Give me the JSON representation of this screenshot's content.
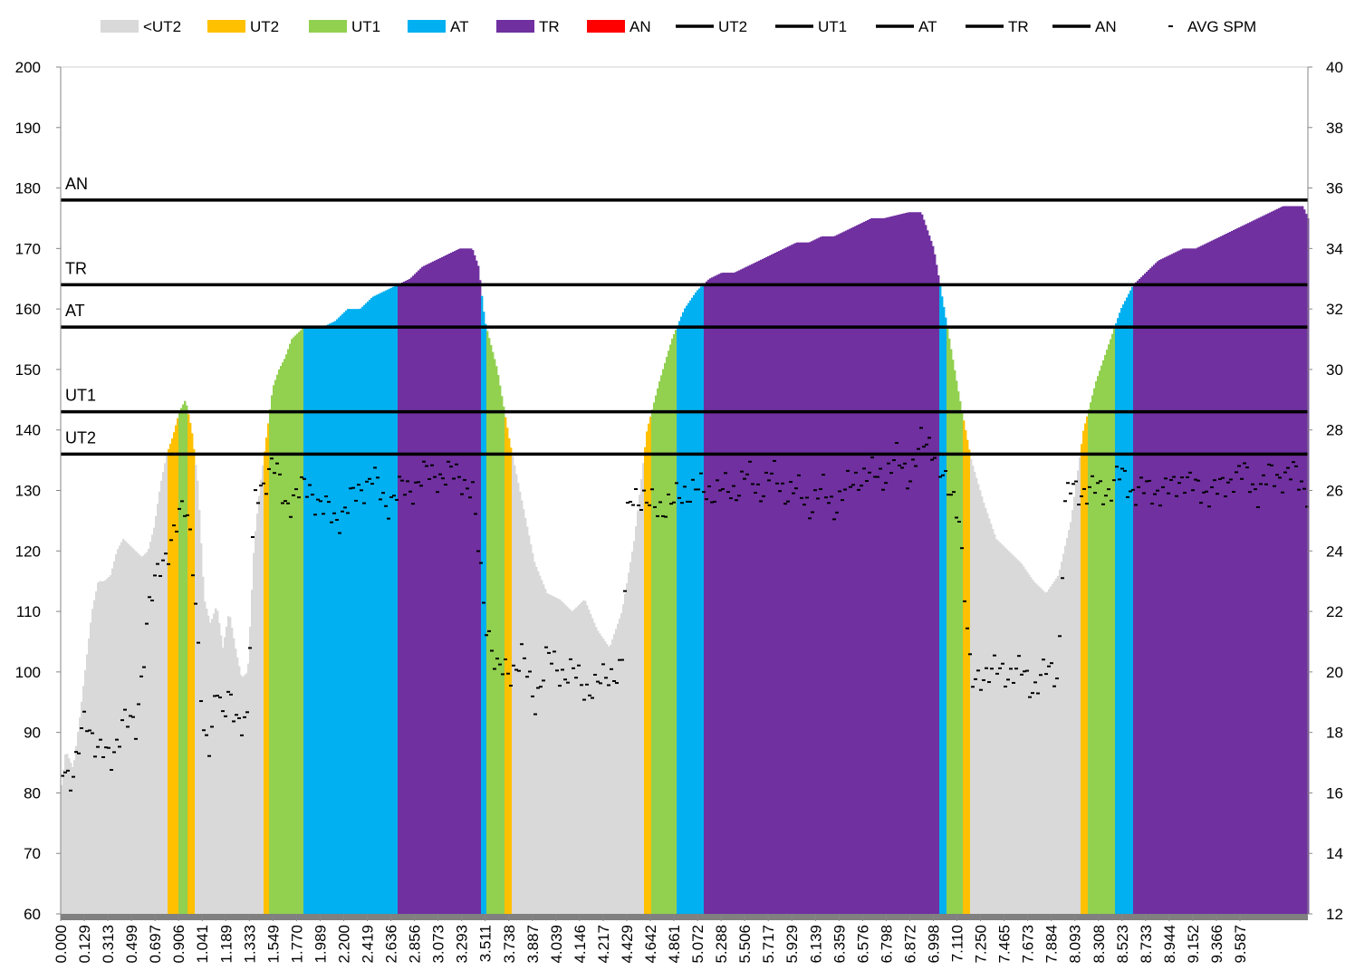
{
  "chart_data": {
    "type": "area",
    "title": "",
    "xlabel": "",
    "ylabel": "",
    "y2label": "",
    "ylim": [
      60,
      200
    ],
    "y2lim": [
      12,
      40
    ],
    "yticks": [
      60,
      70,
      80,
      90,
      100,
      110,
      120,
      130,
      140,
      150,
      160,
      170,
      180,
      190,
      200
    ],
    "y2ticks": [
      12,
      14,
      16,
      18,
      20,
      22,
      24,
      26,
      28,
      30,
      32,
      34,
      36,
      38,
      40
    ],
    "x_tick_labels": [
      "0.000",
      "0.129",
      "0.313",
      "0.499",
      "0.697",
      "0.906",
      "1.041",
      "1.189",
      "1.333",
      "1.549",
      "1.770",
      "1.989",
      "2.200",
      "2.419",
      "2.636",
      "2.856",
      "3.073",
      "3.293",
      "3.511",
      "3.738",
      "3.887",
      "4.039",
      "4.146",
      "4.217",
      "4.429",
      "4.642",
      "4.861",
      "5.072",
      "5.288",
      "5.506",
      "5.717",
      "5.929",
      "6.139",
      "6.359",
      "6.576",
      "6.798",
      "6.872",
      "6.998",
      "7.110",
      "7.250",
      "7.465",
      "7.673",
      "7.884",
      "8.093",
      "8.308",
      "8.523",
      "8.733",
      "8.944",
      "9.152",
      "9.366",
      "9.587"
    ],
    "legend": [
      {
        "label": "<UT2",
        "kind": "area",
        "color": "#d9d9d9"
      },
      {
        "label": "UT2",
        "kind": "area",
        "color": "#ffc000"
      },
      {
        "label": "UT1",
        "kind": "area",
        "color": "#92d050"
      },
      {
        "label": "AT",
        "kind": "area",
        "color": "#00b0f0"
      },
      {
        "label": "TR",
        "kind": "area",
        "color": "#7030a0"
      },
      {
        "label": "AN",
        "kind": "area",
        "color": "#ff0000"
      },
      {
        "label": "UT2",
        "kind": "line",
        "color": "#000000"
      },
      {
        "label": "UT1",
        "kind": "line",
        "color": "#000000"
      },
      {
        "label": "AT",
        "kind": "line",
        "color": "#000000"
      },
      {
        "label": "TR",
        "kind": "line",
        "color": "#000000"
      },
      {
        "label": "AN",
        "kind": "line",
        "color": "#000000"
      },
      {
        "label": "AVG SPM",
        "kind": "dash",
        "color": "#000000"
      }
    ],
    "thresholds": [
      {
        "name": "UT2",
        "value": 136
      },
      {
        "name": "UT1",
        "value": 143
      },
      {
        "name": "AT",
        "value": 157
      },
      {
        "name": "TR",
        "value": 164
      },
      {
        "name": "AN",
        "value": 178
      }
    ],
    "zone_colors": {
      "<UT2": "#d9d9d9",
      "UT2": "#ffc000",
      "UT1": "#92d050",
      "AT": "#00b0f0",
      "TR": "#7030a0",
      "AN": "#ff0000"
    },
    "heart_rate_series": {
      "index_range": [
        0,
        100
      ],
      "points": [
        [
          0,
          80
        ],
        [
          0.4,
          87
        ],
        [
          1,
          84
        ],
        [
          1.5,
          92
        ],
        [
          2,
          101
        ],
        [
          2.5,
          110
        ],
        [
          3,
          115
        ],
        [
          3.5,
          115
        ],
        [
          4,
          116
        ],
        [
          4.5,
          120
        ],
        [
          5,
          122
        ],
        [
          5.5,
          121
        ],
        [
          6,
          120
        ],
        [
          6.5,
          119
        ],
        [
          7,
          120
        ],
        [
          7.5,
          124
        ],
        [
          8,
          131
        ],
        [
          8.5,
          136
        ],
        [
          9,
          139
        ],
        [
          9.5,
          143
        ],
        [
          10,
          145
        ],
        [
          10.5,
          140
        ],
        [
          11,
          131
        ],
        [
          11.5,
          112
        ],
        [
          12,
          108
        ],
        [
          12.5,
          111
        ],
        [
          13,
          104
        ],
        [
          13.5,
          110
        ],
        [
          14,
          104
        ],
        [
          14.5,
          99
        ],
        [
          15,
          100
        ],
        [
          15.5,
          121
        ],
        [
          16,
          131
        ],
        [
          16.5,
          139
        ],
        [
          17,
          147
        ],
        [
          17.5,
          150
        ],
        [
          18,
          152
        ],
        [
          18.5,
          155
        ],
        [
          19,
          156
        ],
        [
          19.5,
          157
        ],
        [
          20,
          157
        ],
        [
          21,
          157
        ],
        [
          22,
          158
        ],
        [
          23,
          160
        ],
        [
          24,
          160
        ],
        [
          25,
          162
        ],
        [
          26,
          163
        ],
        [
          27,
          164
        ],
        [
          28,
          165
        ],
        [
          29,
          167
        ],
        [
          30,
          168
        ],
        [
          31,
          169
        ],
        [
          32,
          170
        ],
        [
          33,
          170
        ],
        [
          33.5,
          167
        ],
        [
          34,
          158
        ],
        [
          35,
          150
        ],
        [
          36,
          138
        ],
        [
          37,
          128
        ],
        [
          38,
          118
        ],
        [
          39,
          113
        ],
        [
          40,
          112
        ],
        [
          41,
          110
        ],
        [
          42,
          112
        ],
        [
          43,
          107
        ],
        [
          44,
          104
        ],
        [
          45,
          110
        ],
        [
          46,
          122
        ],
        [
          47,
          140
        ],
        [
          48,
          148
        ],
        [
          49,
          155
        ],
        [
          50,
          160
        ],
        [
          51,
          163
        ],
        [
          52,
          165
        ],
        [
          53,
          166
        ],
        [
          54,
          166
        ],
        [
          55,
          167
        ],
        [
          56,
          168
        ],
        [
          57,
          169
        ],
        [
          58,
          170
        ],
        [
          59,
          171
        ],
        [
          60,
          171
        ],
        [
          61,
          172
        ],
        [
          62,
          172
        ],
        [
          63,
          173
        ],
        [
          64,
          174
        ],
        [
          65,
          175
        ],
        [
          66,
          175
        ],
        [
          67,
          175.5
        ],
        [
          68,
          176
        ],
        [
          69,
          176
        ],
        [
          70,
          170
        ],
        [
          71,
          158
        ],
        [
          72,
          146
        ],
        [
          73,
          135
        ],
        [
          74,
          128
        ],
        [
          75,
          122
        ],
        [
          76,
          120
        ],
        [
          77,
          118
        ],
        [
          78,
          115
        ],
        [
          79,
          113
        ],
        [
          80,
          116
        ],
        [
          81,
          125
        ],
        [
          82,
          140
        ],
        [
          83,
          148
        ],
        [
          84,
          154
        ],
        [
          85,
          160
        ],
        [
          86,
          164
        ],
        [
          87,
          166
        ],
        [
          88,
          168
        ],
        [
          89,
          169
        ],
        [
          90,
          170
        ],
        [
          91,
          170
        ],
        [
          92,
          171
        ],
        [
          93,
          172
        ],
        [
          94,
          173
        ],
        [
          95,
          174
        ],
        [
          96,
          175
        ],
        [
          97,
          176
        ],
        [
          98,
          177
        ],
        [
          99,
          177
        ],
        [
          99.6,
          177
        ],
        [
          100,
          175
        ]
      ]
    },
    "avg_spm_series": {
      "index_range": [
        0,
        100
      ],
      "points": [
        [
          0,
          17
        ],
        [
          1,
          16.5
        ],
        [
          2,
          18.5
        ],
        [
          3,
          17.5
        ],
        [
          4,
          17
        ],
        [
          5,
          18.5
        ],
        [
          6,
          18
        ],
        [
          7,
          22
        ],
        [
          8,
          23.5
        ],
        [
          9,
          24.5
        ],
        [
          9.5,
          25
        ],
        [
          10,
          25.5
        ],
        [
          10.5,
          24.5
        ],
        [
          11,
          21
        ],
        [
          11.5,
          17.5
        ],
        [
          12,
          17.5
        ],
        [
          12.5,
          20
        ],
        [
          13,
          18.5
        ],
        [
          13.5,
          19
        ],
        [
          14,
          18.5
        ],
        [
          15,
          18.5
        ],
        [
          15.5,
          25.5
        ],
        [
          16,
          26
        ],
        [
          16.5,
          26.5
        ],
        [
          17,
          27
        ],
        [
          18,
          25.5
        ],
        [
          19,
          26
        ],
        [
          20,
          26
        ],
        [
          21,
          25.5
        ],
        [
          22,
          25
        ],
        [
          23,
          25.5
        ],
        [
          24,
          26
        ],
        [
          25,
          26.5
        ],
        [
          26,
          25.5
        ],
        [
          27,
          26
        ],
        [
          28,
          26
        ],
        [
          29,
          26.5
        ],
        [
          30,
          26.5
        ],
        [
          31,
          26.5
        ],
        [
          32,
          26.5
        ],
        [
          33,
          26
        ],
        [
          34,
          22
        ],
        [
          35,
          20
        ],
        [
          36,
          20
        ],
        [
          37,
          20.5
        ],
        [
          38,
          19
        ],
        [
          39,
          20.5
        ],
        [
          40,
          20
        ],
        [
          41,
          20
        ],
        [
          42,
          19.5
        ],
        [
          43,
          19.5
        ],
        [
          44,
          20
        ],
        [
          45,
          20
        ],
        [
          45.5,
          25.5
        ],
        [
          46,
          26
        ],
        [
          47,
          25.5
        ],
        [
          48,
          25.5
        ],
        [
          49,
          25.5
        ],
        [
          50,
          26
        ],
        [
          51,
          26
        ],
        [
          52,
          26
        ],
        [
          53,
          26
        ],
        [
          54,
          26
        ],
        [
          55,
          26.5
        ],
        [
          56,
          26
        ],
        [
          57,
          26.5
        ],
        [
          58,
          26
        ],
        [
          59,
          26
        ],
        [
          60,
          25.5
        ],
        [
          61,
          26
        ],
        [
          62,
          25.5
        ],
        [
          63,
          26
        ],
        [
          64,
          26.5
        ],
        [
          65,
          26.5
        ],
        [
          66,
          26.5
        ],
        [
          67,
          27
        ],
        [
          68,
          26.5
        ],
        [
          69,
          27.5
        ],
        [
          70,
          27.5
        ],
        [
          71,
          26
        ],
        [
          72,
          25.5
        ],
        [
          73,
          19.5
        ],
        [
          74,
          20
        ],
        [
          75,
          20
        ],
        [
          76,
          20
        ],
        [
          77,
          20
        ],
        [
          78,
          19.5
        ],
        [
          79,
          20
        ],
        [
          80,
          20
        ],
        [
          80.5,
          25.5
        ],
        [
          81,
          26
        ],
        [
          82,
          26
        ],
        [
          83,
          26
        ],
        [
          84,
          26
        ],
        [
          85,
          26.5
        ],
        [
          86,
          26
        ],
        [
          87,
          26
        ],
        [
          88,
          26
        ],
        [
          89,
          26
        ],
        [
          90,
          26.5
        ],
        [
          91,
          26
        ],
        [
          92,
          26
        ],
        [
          93,
          26
        ],
        [
          94,
          26.5
        ],
        [
          95,
          26.5
        ],
        [
          96,
          26
        ],
        [
          97,
          26.5
        ],
        [
          98,
          26.5
        ],
        [
          99,
          26.5
        ],
        [
          100,
          26
        ]
      ]
    }
  }
}
